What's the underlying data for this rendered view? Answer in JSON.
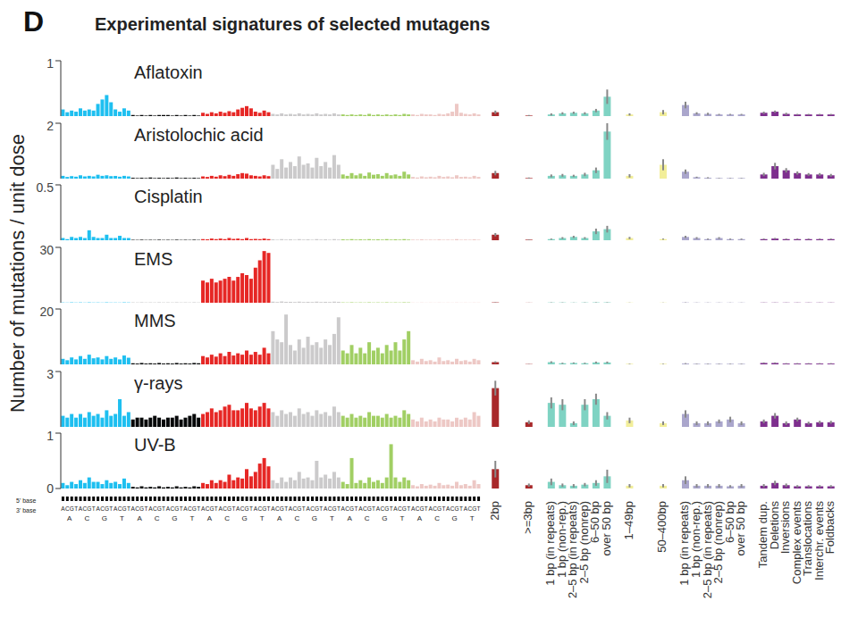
{
  "figure": {
    "panel_letter": "D",
    "title": "Experimental signatures of selected mutagens",
    "y_label": "Number of mutations / unit dose",
    "base_row_labels": [
      "5' base",
      "3' base"
    ],
    "five_prime_bases": [
      "A",
      "C",
      "G",
      "T"
    ],
    "three_prime_bases": [
      "A",
      "C",
      "G",
      "T"
    ],
    "sbs_colors": [
      "#1ebff0",
      "#050708",
      "#e62725",
      "#cbcacb",
      "#a1cf64",
      "#edc8c5"
    ],
    "categories": [
      "2bp",
      ">=3bp",
      "1 bp (in repeats)",
      "1 bp (non-rep.)",
      "2–5 bp (in repeats)",
      "2–5 bp (nonrep)",
      "6–50 bp",
      "over 50 bp",
      "1–49bp",
      "50–400bp",
      "1 bp (in repeats)",
      "1 bp (non-rep.)",
      "2–5 bp (in repeats)",
      "2–5 bp (nonrep)",
      "6–50 bp",
      "over 50 bp",
      "Tandem dup.",
      "Deletions",
      "Inversions",
      "Complex events",
      "Translocations",
      "Interchr. events",
      "Foldbacks"
    ],
    "colors": [
      "#a8282a",
      "#a8282a",
      "#7fd3c3",
      "#7fd3c3",
      "#7fd3c3",
      "#7fd3c3",
      "#7fd3c3",
      "#7fd3c3",
      "#f2ee9a",
      "#f2ee9a",
      "#aaa6cc",
      "#aaa6cc",
      "#aaa6cc",
      "#aaa6cc",
      "#aaa6cc",
      "#aaa6cc",
      "#7e2f8e",
      "#7e2f8e",
      "#7e2f8e",
      "#7e2f8e",
      "#7e2f8e",
      "#7e2f8e",
      "#7e2f8e"
    ]
  },
  "chart_data": [
    {
      "type": "bar",
      "title": "Aflatoxin",
      "ylim": [
        0,
        1
      ],
      "yticks": [
        0,
        1
      ],
      "sbs_values": [
        [
          0.12,
          0.07,
          0.1,
          0.08,
          0.14,
          0.1,
          0.12,
          0.1,
          0.22,
          0.3,
          0.38,
          0.25,
          0.12,
          0.08,
          0.14,
          0.1
        ],
        [
          0.02,
          0.01,
          0.02,
          0.01,
          0.02,
          0.01,
          0.02,
          0.02,
          0.02,
          0.01,
          0.02,
          0.01,
          0.02,
          0.01,
          0.02,
          0.01
        ],
        [
          0.06,
          0.04,
          0.07,
          0.05,
          0.08,
          0.06,
          0.09,
          0.07,
          0.12,
          0.15,
          0.18,
          0.14,
          0.08,
          0.06,
          0.1,
          0.07
        ],
        [
          0.04,
          0.03,
          0.05,
          0.03,
          0.04,
          0.03,
          0.05,
          0.03,
          0.04,
          0.03,
          0.05,
          0.03,
          0.04,
          0.03,
          0.05,
          0.03
        ],
        [
          0.03,
          0.02,
          0.03,
          0.02,
          0.03,
          0.02,
          0.04,
          0.02,
          0.03,
          0.02,
          0.03,
          0.02,
          0.03,
          0.02,
          0.04,
          0.03
        ],
        [
          0.03,
          0.02,
          0.04,
          0.03,
          0.03,
          0.02,
          0.04,
          0.03,
          0.05,
          0.08,
          0.22,
          0.06,
          0.04,
          0.03,
          0.05,
          0.03
        ]
      ],
      "values": [
        0.07,
        0.01,
        0.03,
        0.05,
        0.06,
        0.05,
        0.1,
        0.35,
        0.03,
        0.07,
        0.2,
        0.05,
        0.04,
        0.03,
        0.03,
        0.03,
        0.06,
        0.08,
        0.04,
        0.03,
        0.03,
        0.03,
        0.03
      ],
      "errors": [
        0.03,
        0.01,
        0.02,
        0.02,
        0.02,
        0.02,
        0.03,
        0.13,
        0.02,
        0.04,
        0.06,
        0.02,
        0.02,
        0.01,
        0.01,
        0.01,
        0.02,
        0.02,
        0.02,
        0.01,
        0.01,
        0.01,
        0.01
      ]
    },
    {
      "type": "bar",
      "title": "Aristolochic acid",
      "ylim": [
        0,
        2
      ],
      "yticks": [
        0,
        2
      ],
      "sbs_values": [
        [
          0.1,
          0.06,
          0.09,
          0.07,
          0.12,
          0.08,
          0.1,
          0.08,
          0.14,
          0.1,
          0.12,
          0.09,
          0.1,
          0.07,
          0.1,
          0.08
        ],
        [
          0.03,
          0.02,
          0.03,
          0.02,
          0.04,
          0.02,
          0.03,
          0.02,
          0.03,
          0.02,
          0.04,
          0.02,
          0.03,
          0.02,
          0.03,
          0.02
        ],
        [
          0.08,
          0.06,
          0.1,
          0.07,
          0.12,
          0.09,
          0.14,
          0.1,
          0.16,
          0.2,
          0.18,
          0.12,
          0.1,
          0.08,
          0.12,
          0.09
        ],
        [
          0.5,
          0.35,
          0.7,
          0.4,
          0.6,
          0.45,
          0.8,
          0.5,
          0.55,
          0.4,
          0.75,
          0.45,
          0.6,
          0.4,
          0.85,
          0.5
        ],
        [
          0.15,
          0.1,
          0.2,
          0.12,
          0.18,
          0.1,
          0.22,
          0.14,
          0.16,
          0.1,
          0.2,
          0.12,
          0.15,
          0.1,
          0.25,
          0.15
        ],
        [
          0.06,
          0.04,
          0.08,
          0.05,
          0.07,
          0.05,
          0.1,
          0.06,
          0.08,
          0.05,
          0.12,
          0.06,
          0.07,
          0.05,
          0.1,
          0.06
        ]
      ],
      "values": [
        0.2,
        0.02,
        0.1,
        0.12,
        0.1,
        0.15,
        0.3,
        1.7,
        0.1,
        0.5,
        0.25,
        0.05,
        0.03,
        0.02,
        0.02,
        0.02,
        0.15,
        0.45,
        0.3,
        0.2,
        0.15,
        0.15,
        0.12
      ],
      "errors": [
        0.08,
        0.02,
        0.05,
        0.05,
        0.04,
        0.06,
        0.1,
        0.3,
        0.06,
        0.2,
        0.08,
        0.02,
        0.02,
        0.01,
        0.01,
        0.01,
        0.06,
        0.12,
        0.08,
        0.06,
        0.05,
        0.05,
        0.05
      ]
    },
    {
      "type": "bar",
      "title": "Cisplatin",
      "ylim": [
        0,
        0.5
      ],
      "yticks": [
        0,
        0.5
      ],
      "sbs_values": [
        [
          0.02,
          0.01,
          0.03,
          0.02,
          0.03,
          0.02,
          0.09,
          0.03,
          0.02,
          0.02,
          0.05,
          0.02,
          0.02,
          0.04,
          0.02,
          0.02
        ],
        [
          0.004,
          0.003,
          0.005,
          0.003,
          0.004,
          0.003,
          0.005,
          0.003,
          0.004,
          0.003,
          0.005,
          0.003,
          0.004,
          0.003,
          0.005,
          0.003
        ],
        [
          0.01,
          0.008,
          0.015,
          0.01,
          0.015,
          0.01,
          0.02,
          0.012,
          0.015,
          0.01,
          0.02,
          0.01,
          0.012,
          0.01,
          0.015,
          0.01
        ],
        [
          0.008,
          0.005,
          0.01,
          0.006,
          0.008,
          0.005,
          0.01,
          0.006,
          0.008,
          0.005,
          0.01,
          0.006,
          0.008,
          0.005,
          0.01,
          0.006
        ],
        [
          0.008,
          0.006,
          0.01,
          0.006,
          0.008,
          0.006,
          0.01,
          0.006,
          0.008,
          0.006,
          0.01,
          0.006,
          0.008,
          0.006,
          0.01,
          0.006
        ],
        [
          0.006,
          0.005,
          0.008,
          0.005,
          0.006,
          0.005,
          0.008,
          0.005,
          0.006,
          0.005,
          0.01,
          0.005,
          0.006,
          0.005,
          0.008,
          0.005
        ]
      ],
      "values": [
        0.05,
        0.005,
        0.01,
        0.02,
        0.03,
        0.02,
        0.08,
        0.1,
        0.02,
        0.01,
        0.03,
        0.02,
        0.01,
        0.02,
        0.01,
        0.01,
        0.01,
        0.015,
        0.01,
        0.01,
        0.01,
        0.01,
        0.01
      ],
      "errors": [
        0.015,
        0.003,
        0.005,
        0.008,
        0.01,
        0.008,
        0.025,
        0.03,
        0.01,
        0.005,
        0.01,
        0.008,
        0.005,
        0.008,
        0.005,
        0.005,
        0.005,
        0.006,
        0.005,
        0.005,
        0.005,
        0.005,
        0.005
      ]
    },
    {
      "type": "bar",
      "title": "EMS",
      "ylim": [
        0,
        30
      ],
      "yticks": [
        0,
        30
      ],
      "sbs_values": [
        [
          0.15,
          0.1,
          0.2,
          0.12,
          0.18,
          0.1,
          0.2,
          0.12,
          0.15,
          0.1,
          0.2,
          0.12,
          0.15,
          0.1,
          0.2,
          0.15
        ],
        [
          0.05,
          0.04,
          0.06,
          0.04,
          0.05,
          0.04,
          0.06,
          0.04,
          0.05,
          0.04,
          0.06,
          0.04,
          0.05,
          0.04,
          0.06,
          0.04
        ],
        [
          12,
          11,
          13,
          11,
          12,
          13,
          14,
          12,
          14,
          16,
          15,
          13,
          19,
          23,
          28,
          27
        ],
        [
          0.6,
          0.4,
          0.7,
          0.5,
          0.5,
          0.4,
          0.6,
          0.4,
          0.5,
          0.4,
          0.6,
          0.4,
          0.5,
          0.4,
          0.6,
          0.5
        ],
        [
          0.2,
          0.15,
          0.25,
          0.15,
          0.2,
          0.15,
          0.25,
          0.15,
          0.2,
          0.15,
          0.25,
          0.15,
          0.2,
          0.15,
          0.25,
          0.2
        ],
        [
          0.1,
          0.08,
          0.12,
          0.08,
          0.1,
          0.08,
          0.12,
          0.08,
          0.1,
          0.08,
          0.12,
          0.08,
          0.1,
          0.08,
          0.12,
          0.1
        ]
      ],
      "values": [
        0.2,
        0.05,
        0.15,
        0.15,
        0.1,
        0.15,
        0.2,
        0.2,
        0.1,
        0.1,
        0.15,
        0.1,
        0.1,
        0.1,
        0.1,
        0.1,
        0.1,
        0.1,
        0.1,
        0.1,
        0.1,
        0.1,
        0.1
      ],
      "errors": [
        0.1,
        0.03,
        0.08,
        0.08,
        0.05,
        0.08,
        0.1,
        0.1,
        0.05,
        0.05,
        0.08,
        0.05,
        0.05,
        0.05,
        0.05,
        0.05,
        0.05,
        0.05,
        0.05,
        0.05,
        0.05,
        0.05,
        0.05
      ]
    },
    {
      "type": "bar",
      "title": "MMS",
      "ylim": [
        0,
        20
      ],
      "yticks": [
        0,
        20
      ],
      "sbs_values": [
        [
          2,
          1.5,
          2.5,
          1.8,
          3,
          2,
          3.5,
          2.2,
          2.5,
          1.8,
          3,
          2,
          2.5,
          1.8,
          3.2,
          2.4
        ],
        [
          0.4,
          0.3,
          0.5,
          0.3,
          0.4,
          0.3,
          0.5,
          0.3,
          0.4,
          0.3,
          0.5,
          0.3,
          0.4,
          0.3,
          0.5,
          0.4
        ],
        [
          3,
          2.5,
          3.5,
          2.8,
          4,
          3,
          4.5,
          3.2,
          4,
          3.5,
          5,
          3.5,
          4.5,
          3.5,
          6,
          4
        ],
        [
          12,
          9,
          8,
          18,
          7,
          5,
          9,
          6,
          10,
          7,
          8,
          6,
          9,
          7,
          11,
          17
        ],
        [
          5,
          4,
          7,
          4,
          6,
          4,
          8,
          5,
          6,
          4,
          7,
          5,
          8,
          5,
          9,
          12
        ],
        [
          1.5,
          1,
          2,
          1.2,
          1.5,
          1,
          2.5,
          1.2,
          1.5,
          1,
          2,
          1.2,
          1.5,
          1,
          2,
          1.5
        ]
      ],
      "values": [
        0.8,
        0.1,
        0.8,
        0.4,
        0.5,
        0.4,
        0.7,
        0.7,
        0.2,
        0.2,
        0.3,
        0.2,
        0.2,
        0.2,
        0.2,
        0.2,
        0.5,
        0.5,
        0.3,
        0.3,
        0.3,
        0.3,
        0.3
      ],
      "errors": [
        0.3,
        0.05,
        0.3,
        0.2,
        0.2,
        0.2,
        0.3,
        0.3,
        0.1,
        0.1,
        0.15,
        0.1,
        0.1,
        0.1,
        0.1,
        0.1,
        0.2,
        0.2,
        0.15,
        0.15,
        0.15,
        0.15,
        0.15
      ]
    },
    {
      "type": "bar",
      "title": "γ-rays",
      "ylim": [
        0,
        3
      ],
      "yticks": [
        0,
        3
      ],
      "sbs_values": [
        [
          0.6,
          0.5,
          0.7,
          0.5,
          0.7,
          0.5,
          0.8,
          0.6,
          0.7,
          0.5,
          0.9,
          0.6,
          0.7,
          1.5,
          0.6,
          0.8
        ],
        [
          0.4,
          0.5,
          0.5,
          0.4,
          0.5,
          0.6,
          0.5,
          0.4,
          0.5,
          0.5,
          0.6,
          0.4,
          0.5,
          0.6,
          0.7,
          0.5
        ],
        [
          0.7,
          0.8,
          1,
          0.8,
          0.9,
          1.1,
          1.2,
          0.9,
          0.9,
          1,
          1.3,
          1,
          0.9,
          1.1,
          1.3,
          1
        ],
        [
          0.8,
          0.6,
          0.9,
          0.7,
          0.8,
          0.6,
          1,
          0.7,
          0.8,
          0.6,
          0.9,
          0.7,
          0.8,
          0.6,
          1.1,
          0.8
        ],
        [
          0.6,
          0.5,
          0.7,
          0.5,
          0.6,
          0.5,
          0.8,
          0.6,
          0.6,
          0.5,
          0.7,
          0.5,
          0.6,
          0.5,
          0.9,
          0.7
        ],
        [
          0.4,
          0.3,
          0.5,
          0.3,
          0.4,
          0.3,
          0.5,
          0.4,
          0.4,
          0.3,
          0.5,
          0.4,
          0.5,
          0.4,
          0.8,
          0.6
        ]
      ],
      "values": [
        2.1,
        0.25,
        1.3,
        1.2,
        0.2,
        1.2,
        1.5,
        0.6,
        0.35,
        0.2,
        0.7,
        0.2,
        0.2,
        0.3,
        0.4,
        0.2,
        0.3,
        0.6,
        0.2,
        0.4,
        0.2,
        0.25,
        0.25
      ],
      "errors": [
        0.4,
        0.1,
        0.3,
        0.3,
        0.1,
        0.3,
        0.3,
        0.2,
        0.15,
        0.1,
        0.2,
        0.1,
        0.1,
        0.1,
        0.15,
        0.1,
        0.1,
        0.15,
        0.1,
        0.1,
        0.08,
        0.08,
        0.08
      ]
    },
    {
      "type": "bar",
      "title": "UV-B",
      "ylim": [
        0,
        1
      ],
      "yticks": [
        0,
        1
      ],
      "sbs_values": [
        [
          0.1,
          0.06,
          0.12,
          0.08,
          0.15,
          0.1,
          0.2,
          0.12,
          0.12,
          0.08,
          0.15,
          0.1,
          0.12,
          0.08,
          0.18,
          0.1
        ],
        [
          0.03,
          0.02,
          0.04,
          0.02,
          0.03,
          0.02,
          0.04,
          0.02,
          0.03,
          0.02,
          0.04,
          0.02,
          0.03,
          0.02,
          0.04,
          0.03
        ],
        [
          0.1,
          0.08,
          0.15,
          0.1,
          0.15,
          0.12,
          0.25,
          0.15,
          0.2,
          0.18,
          0.35,
          0.22,
          0.3,
          0.45,
          0.55,
          0.4
        ],
        [
          0.15,
          0.1,
          0.2,
          0.12,
          0.2,
          0.15,
          0.3,
          0.18,
          0.2,
          0.15,
          0.5,
          0.2,
          0.25,
          0.18,
          0.3,
          0.2
        ],
        [
          0.12,
          0.08,
          0.55,
          0.1,
          0.15,
          0.1,
          0.2,
          0.12,
          0.15,
          0.1,
          0.2,
          0.8,
          0.2,
          0.12,
          0.2,
          0.15
        ],
        [
          0.06,
          0.04,
          0.08,
          0.05,
          0.07,
          0.05,
          0.1,
          0.06,
          0.07,
          0.05,
          0.12,
          0.06,
          0.08,
          0.05,
          0.15,
          0.08
        ]
      ],
      "values": [
        0.35,
        0.06,
        0.12,
        0.06,
        0.05,
        0.07,
        0.1,
        0.22,
        0.05,
        0.05,
        0.15,
        0.05,
        0.05,
        0.05,
        0.04,
        0.05,
        0.05,
        0.1,
        0.06,
        0.04,
        0.04,
        0.04,
        0.04
      ],
      "errors": [
        0.15,
        0.03,
        0.06,
        0.03,
        0.03,
        0.03,
        0.05,
        0.12,
        0.03,
        0.03,
        0.07,
        0.03,
        0.03,
        0.03,
        0.02,
        0.03,
        0.03,
        0.04,
        0.03,
        0.02,
        0.02,
        0.02,
        0.02
      ]
    }
  ]
}
